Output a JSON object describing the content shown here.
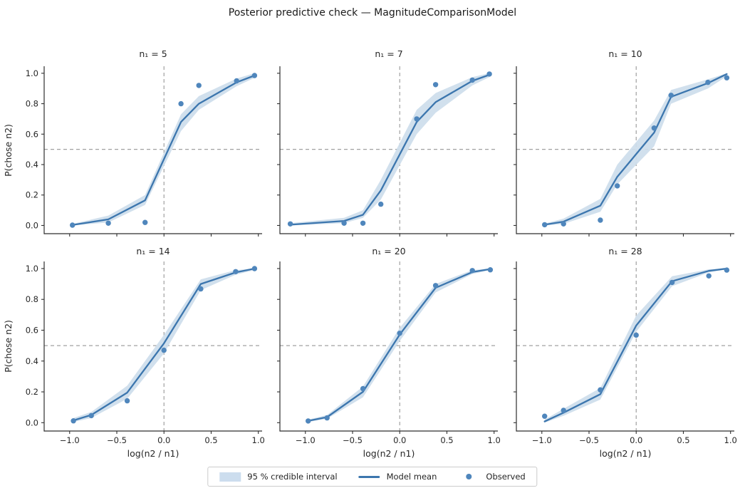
{
  "page": {
    "kind": "matplotlib-figure"
  },
  "colors": {
    "mean_line": "#3c76ae",
    "observed_dot": "#4f86bc",
    "band_fill": "#cdddec",
    "reference_dash": "#a0a0a0",
    "spine": "#2e2e2e",
    "text": "#262626"
  },
  "legend": {
    "items": [
      {
        "swatch": "band",
        "label": "95 % credible interval"
      },
      {
        "swatch": "line",
        "label": "Model mean"
      },
      {
        "swatch": "dot",
        "label": "Observed"
      }
    ]
  },
  "chart_data": {
    "type": "line",
    "title": "Posterior predictive check — MagnitudeComparisonModel",
    "xlabel": "log(n2 / n1)",
    "ylabel": "P(chose n2)",
    "xlim": [
      -1.27,
      1.04
    ],
    "ylim": [
      -0.054,
      1.046
    ],
    "x_ticks": [
      -1.0,
      -0.5,
      0.0,
      0.5,
      1.0
    ],
    "x_tick_labels": [
      "−1.0",
      "−0.5",
      "0.0",
      "0.5",
      "1.0"
    ],
    "y_ticks": [
      0.0,
      0.2,
      0.4,
      0.6,
      0.8,
      1.0
    ],
    "y_tick_labels": [
      "0.0",
      "0.2",
      "0.4",
      "0.6",
      "0.8",
      "1.0"
    ],
    "grid": false,
    "legend_position": "lower center outside",
    "reference_lines": {
      "h": 0.5,
      "v": 0.0
    },
    "facets": [
      {
        "title": "n₁ = 5",
        "x": [
          -0.97,
          -0.59,
          -0.2,
          0.18,
          0.37,
          0.77,
          0.96
        ],
        "observed": [
          0.002,
          0.015,
          0.02,
          0.8,
          0.92,
          0.95,
          0.985
        ],
        "mean": [
          0.003,
          0.04,
          0.165,
          0.68,
          0.8,
          0.94,
          0.985
        ],
        "lo": [
          0.0,
          0.02,
          0.135,
          0.62,
          0.76,
          0.915,
          0.97
        ],
        "hi": [
          0.01,
          0.065,
          0.2,
          0.73,
          0.85,
          0.965,
          1.0
        ]
      },
      {
        "title": "n₁ = 7",
        "x": [
          -1.16,
          -0.59,
          -0.39,
          -0.2,
          0.18,
          0.38,
          0.77,
          0.95
        ],
        "observed": [
          0.01,
          0.015,
          0.015,
          0.14,
          0.7,
          0.925,
          0.955,
          0.995
        ],
        "mean": [
          0.005,
          0.03,
          0.07,
          0.23,
          0.68,
          0.81,
          0.95,
          0.99
        ],
        "lo": [
          0.0,
          0.015,
          0.05,
          0.17,
          0.6,
          0.74,
          0.92,
          0.975
        ],
        "hi": [
          0.015,
          0.05,
          0.1,
          0.3,
          0.76,
          0.87,
          0.975,
          1.0
        ]
      },
      {
        "title": "n₁ = 10",
        "x": [
          -0.97,
          -0.77,
          -0.38,
          -0.2,
          0.19,
          0.37,
          0.76,
          0.96
        ],
        "observed": [
          0.005,
          0.01,
          0.035,
          0.26,
          0.64,
          0.855,
          0.94,
          0.97
        ],
        "mean": [
          0.005,
          0.025,
          0.13,
          0.32,
          0.61,
          0.845,
          0.935,
          0.995
        ],
        "lo": [
          0.0,
          0.01,
          0.09,
          0.27,
          0.52,
          0.8,
          0.9,
          0.98
        ],
        "hi": [
          0.012,
          0.045,
          0.175,
          0.4,
          0.69,
          0.89,
          0.96,
          1.0
        ]
      },
      {
        "title": "n₁ = 14",
        "x": [
          -0.96,
          -0.77,
          -0.39,
          0.0,
          0.39,
          0.76,
          0.96
        ],
        "observed": [
          0.012,
          0.046,
          0.142,
          0.47,
          0.868,
          0.98,
          1.0
        ],
        "mean": [
          0.015,
          0.05,
          0.195,
          0.515,
          0.9,
          0.975,
          1.0
        ],
        "lo": [
          0.005,
          0.03,
          0.155,
          0.45,
          0.86,
          0.96,
          0.99
        ],
        "hi": [
          0.03,
          0.07,
          0.24,
          0.57,
          0.93,
          0.99,
          1.0
        ]
      },
      {
        "title": "n₁ = 20",
        "x": [
          -0.97,
          -0.77,
          -0.39,
          0.0,
          0.38,
          0.77,
          0.96
        ],
        "observed": [
          0.011,
          0.031,
          0.221,
          0.58,
          0.89,
          0.987,
          0.992
        ],
        "mean": [
          0.012,
          0.036,
          0.2,
          0.572,
          0.875,
          0.977,
          0.997
        ],
        "lo": [
          0.005,
          0.025,
          0.165,
          0.53,
          0.845,
          0.965,
          0.99
        ],
        "hi": [
          0.02,
          0.05,
          0.235,
          0.615,
          0.9,
          0.99,
          1.0
        ]
      },
      {
        "title": "n₁ = 28",
        "x": [
          -0.97,
          -0.77,
          -0.38,
          0.0,
          0.38,
          0.77,
          0.96
        ],
        "observed": [
          0.042,
          0.08,
          0.213,
          0.568,
          0.91,
          0.952,
          0.99
        ],
        "mean": [
          0.008,
          0.065,
          0.185,
          0.63,
          0.918,
          0.985,
          1.0
        ],
        "lo": [
          0.0,
          0.045,
          0.15,
          0.59,
          0.885,
          0.975,
          0.995
        ],
        "hi": [
          0.02,
          0.09,
          0.225,
          0.695,
          0.95,
          0.995,
          1.0
        ]
      }
    ]
  }
}
